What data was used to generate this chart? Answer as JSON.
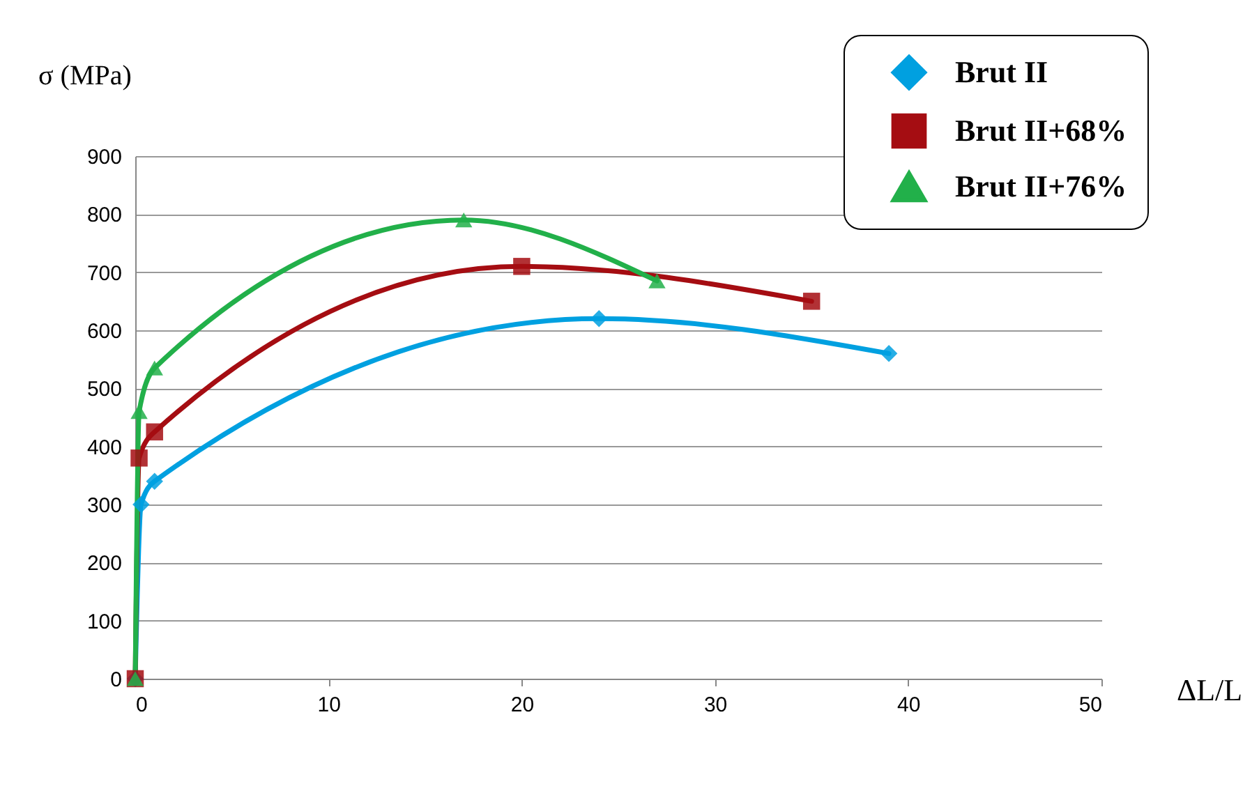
{
  "chart_data": {
    "type": "line",
    "xlabel": "ΔL/L",
    "ylabel": "σ (MPa)",
    "xlim": [
      0,
      50
    ],
    "xticks": [
      0,
      10,
      20,
      30,
      40,
      50
    ],
    "ylim": [
      0,
      900
    ],
    "yticks": [
      0,
      100,
      200,
      300,
      400,
      500,
      600,
      700,
      800,
      900
    ],
    "grid": "y",
    "legend": "top right",
    "series": [
      {
        "name": "Brut II",
        "color": "#00a0e0",
        "marker": "diamond",
        "x": [
          0,
          0.3,
          1,
          24,
          39
        ],
        "values": [
          0,
          300,
          340,
          620,
          560
        ]
      },
      {
        "name": "Brut II+68%",
        "color": "#a50d12",
        "marker": "square",
        "x": [
          0,
          0.2,
          1,
          20,
          35
        ],
        "values": [
          0,
          380,
          425,
          710,
          650
        ]
      },
      {
        "name": "Brut II+76%",
        "color": "#22b04a",
        "marker": "triangle",
        "x": [
          0,
          0.2,
          1,
          17,
          27
        ],
        "values": [
          0,
          460,
          535,
          790,
          685
        ]
      }
    ]
  }
}
